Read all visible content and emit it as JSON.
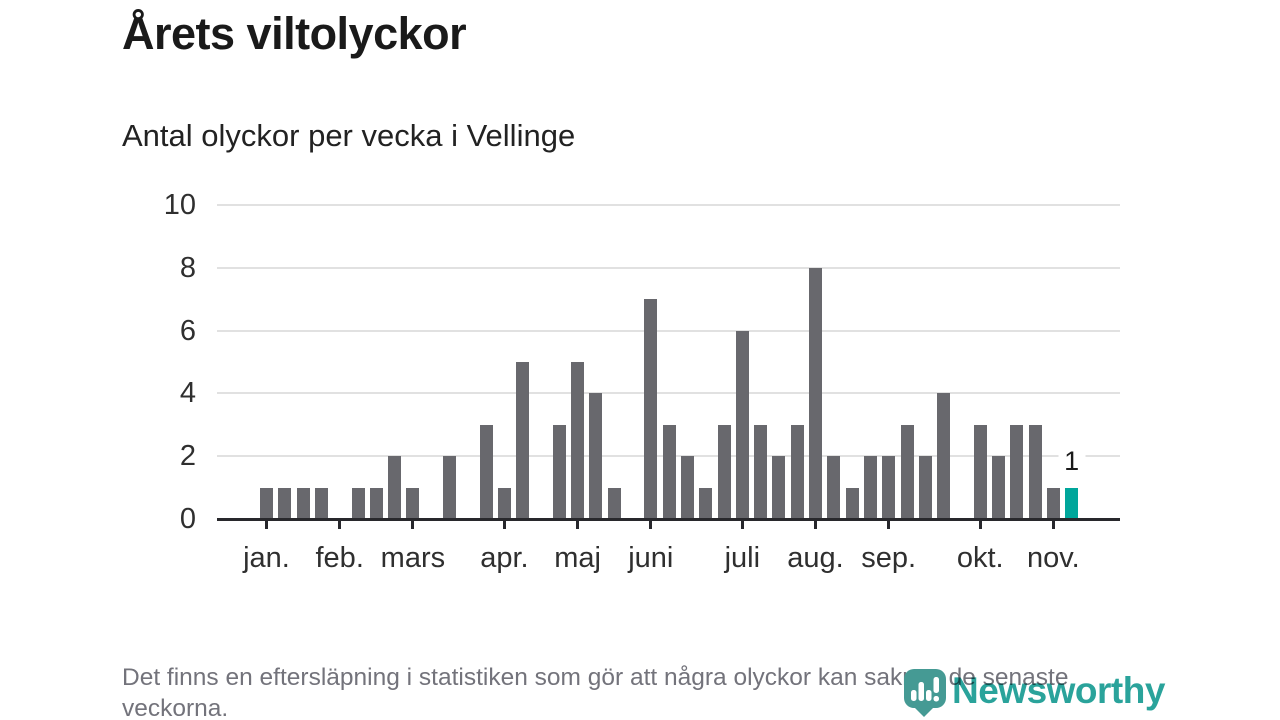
{
  "header": {
    "title": "Årets viltolyckor",
    "subtitle": "Antal olyckor per vecka i Vellinge"
  },
  "chart_data": {
    "type": "bar",
    "title": "Årets viltolyckor",
    "subtitle": "Antal olyckor per vecka i Vellinge",
    "x_unit": "vecka (week)",
    "values": [
      1,
      1,
      1,
      1,
      0,
      1,
      1,
      2,
      1,
      0,
      2,
      0,
      3,
      1,
      5,
      0,
      3,
      5,
      4,
      1,
      0,
      7,
      3,
      2,
      1,
      3,
      6,
      3,
      2,
      3,
      8,
      2,
      1,
      2,
      2,
      3,
      2,
      4,
      0,
      3,
      2,
      3,
      3,
      1,
      1
    ],
    "highlight_index": 44,
    "highlight_label": "1",
    "ylim": [
      0,
      10
    ],
    "y_ticks": [
      0,
      2,
      4,
      6,
      8,
      10
    ],
    "x_ticks": [
      {
        "label": "jan.",
        "slot": 0
      },
      {
        "label": "feb.",
        "slot": 4
      },
      {
        "label": "mars",
        "slot": 8
      },
      {
        "label": "apr.",
        "slot": 13
      },
      {
        "label": "maj",
        "slot": 17
      },
      {
        "label": "juni",
        "slot": 21
      },
      {
        "label": "juli",
        "slot": 26
      },
      {
        "label": "aug.",
        "slot": 30
      },
      {
        "label": "sep.",
        "slot": 34
      },
      {
        "label": "okt.",
        "slot": 39
      },
      {
        "label": "nov.",
        "slot": 43
      }
    ],
    "grid": true,
    "legend_position": "none",
    "colors": {
      "bar": "#68686d",
      "highlight": "#00a69b",
      "grid": "#e1e1e1",
      "axis": "#28282c",
      "tick_label": "#2f2f2f"
    }
  },
  "footer": {
    "note": "Det finns en eftersläpning i statistiken som gör att några olyckor kan saknas de senaste veckorna."
  },
  "logo": {
    "text": "Newsworthy",
    "icon": "newsworthy-bubble-chart-icon",
    "text_color": "#2aa39b",
    "icon_color": "#459a94"
  }
}
